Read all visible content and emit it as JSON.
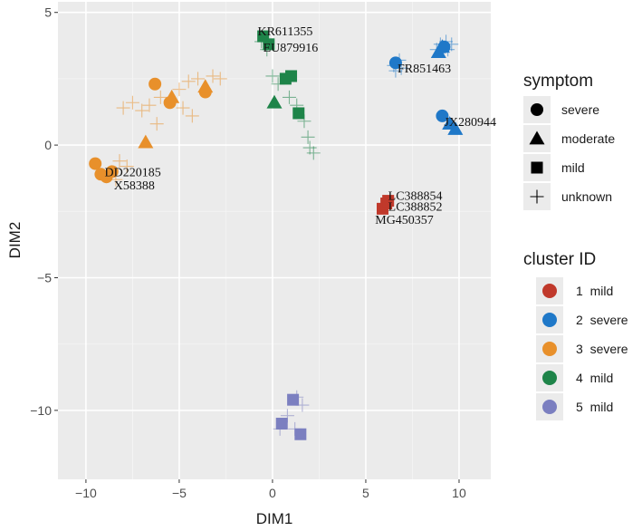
{
  "chart_data": {
    "type": "scatter",
    "xlabel": "DIM1",
    "ylabel": "DIM2",
    "xlim": [
      -11.5,
      11.7
    ],
    "ylim": [
      -12.6,
      5.4
    ],
    "x_ticks": [
      -10,
      -5,
      0,
      5,
      10
    ],
    "y_ticks": [
      5,
      0,
      -5,
      -10
    ],
    "x_tick_labels": [
      "−10",
      "−5",
      "0",
      "5",
      "10"
    ],
    "y_tick_labels": [
      "5",
      "0",
      "−5",
      "−10"
    ],
    "grid": true,
    "legend_position": "right",
    "colors": {
      "1": "#c0392b",
      "2": "#1f78c8",
      "3": "#e8902b",
      "4": "#1e8449",
      "5": "#7b7fc0"
    },
    "symptom_legend": {
      "title": "symptom",
      "items": [
        {
          "shape": "circle",
          "label": "severe"
        },
        {
          "shape": "triangle",
          "label": "moderate"
        },
        {
          "shape": "square",
          "label": "mild"
        },
        {
          "shape": "plus",
          "label": "unknown"
        }
      ]
    },
    "cluster_legend": {
      "title": "cluster ID",
      "items": [
        {
          "id": "1",
          "label": "1  mild"
        },
        {
          "id": "2",
          "label": "2  severe"
        },
        {
          "id": "3",
          "label": "3  severe"
        },
        {
          "id": "4",
          "label": "4  mild"
        },
        {
          "id": "5",
          "label": "5  mild"
        }
      ]
    },
    "points": [
      {
        "x": 5.9,
        "y": -2.4,
        "cluster": "1",
        "symptom": "mild"
      },
      {
        "x": 6.1,
        "y": -2.2,
        "cluster": "1",
        "symptom": "mild"
      },
      {
        "x": 6.2,
        "y": -2.1,
        "cluster": "1",
        "symptom": "mild"
      },
      {
        "x": 6.6,
        "y": 3.1,
        "cluster": "2",
        "symptom": "severe"
      },
      {
        "x": 9.2,
        "y": 3.7,
        "cluster": "2",
        "symptom": "severe"
      },
      {
        "x": 9.1,
        "y": 1.1,
        "cluster": "2",
        "symptom": "severe"
      },
      {
        "x": 8.9,
        "y": 3.5,
        "cluster": "2",
        "symptom": "moderate"
      },
      {
        "x": 9.1,
        "y": 3.7,
        "cluster": "2",
        "symptom": "moderate"
      },
      {
        "x": 9.5,
        "y": 0.8,
        "cluster": "2",
        "symptom": "moderate"
      },
      {
        "x": 9.8,
        "y": 0.6,
        "cluster": "2",
        "symptom": "moderate"
      },
      {
        "x": 6.5,
        "y": 3.0,
        "cluster": "2",
        "symptom": "unknown"
      },
      {
        "x": 6.8,
        "y": 3.2,
        "cluster": "2",
        "symptom": "unknown"
      },
      {
        "x": 6.6,
        "y": 2.8,
        "cluster": "2",
        "symptom": "unknown"
      },
      {
        "x": 6.9,
        "y": 2.9,
        "cluster": "2",
        "symptom": "unknown"
      },
      {
        "x": 8.8,
        "y": 3.6,
        "cluster": "2",
        "symptom": "unknown"
      },
      {
        "x": 9.3,
        "y": 3.9,
        "cluster": "2",
        "symptom": "unknown"
      },
      {
        "x": 9.4,
        "y": 3.6,
        "cluster": "2",
        "symptom": "unknown"
      },
      {
        "x": 9.0,
        "y": 3.8,
        "cluster": "2",
        "symptom": "unknown"
      },
      {
        "x": 9.6,
        "y": 3.8,
        "cluster": "2",
        "symptom": "unknown"
      },
      {
        "x": -6.3,
        "y": 2.3,
        "cluster": "3",
        "symptom": "severe"
      },
      {
        "x": -5.5,
        "y": 1.6,
        "cluster": "3",
        "symptom": "severe"
      },
      {
        "x": -3.6,
        "y": 2.0,
        "cluster": "3",
        "symptom": "severe"
      },
      {
        "x": -9.5,
        "y": -0.7,
        "cluster": "3",
        "symptom": "severe"
      },
      {
        "x": -9.2,
        "y": -1.1,
        "cluster": "3",
        "symptom": "severe"
      },
      {
        "x": -8.9,
        "y": -1.2,
        "cluster": "3",
        "symptom": "severe"
      },
      {
        "x": -8.6,
        "y": -1.0,
        "cluster": "3",
        "symptom": "severe"
      },
      {
        "x": -6.8,
        "y": 0.1,
        "cluster": "3",
        "symptom": "moderate"
      },
      {
        "x": -5.4,
        "y": 1.8,
        "cluster": "3",
        "symptom": "moderate"
      },
      {
        "x": -3.6,
        "y": 2.2,
        "cluster": "3",
        "symptom": "moderate"
      },
      {
        "x": -8.0,
        "y": 1.4,
        "cluster": "3",
        "symptom": "unknown"
      },
      {
        "x": -7.5,
        "y": 1.6,
        "cluster": "3",
        "symptom": "unknown"
      },
      {
        "x": -7.0,
        "y": 1.3,
        "cluster": "3",
        "symptom": "unknown"
      },
      {
        "x": -6.6,
        "y": 1.5,
        "cluster": "3",
        "symptom": "unknown"
      },
      {
        "x": -6.0,
        "y": 1.8,
        "cluster": "3",
        "symptom": "unknown"
      },
      {
        "x": -5.0,
        "y": 2.1,
        "cluster": "3",
        "symptom": "unknown"
      },
      {
        "x": -4.5,
        "y": 2.4,
        "cluster": "3",
        "symptom": "unknown"
      },
      {
        "x": -4.0,
        "y": 2.5,
        "cluster": "3",
        "symptom": "unknown"
      },
      {
        "x": -3.2,
        "y": 2.6,
        "cluster": "3",
        "symptom": "unknown"
      },
      {
        "x": -2.8,
        "y": 2.5,
        "cluster": "3",
        "symptom": "unknown"
      },
      {
        "x": -4.8,
        "y": 1.4,
        "cluster": "3",
        "symptom": "unknown"
      },
      {
        "x": -4.3,
        "y": 1.1,
        "cluster": "3",
        "symptom": "unknown"
      },
      {
        "x": -6.2,
        "y": 0.8,
        "cluster": "3",
        "symptom": "unknown"
      },
      {
        "x": -8.2,
        "y": -0.6,
        "cluster": "3",
        "symptom": "unknown"
      },
      {
        "x": -7.8,
        "y": -0.8,
        "cluster": "3",
        "symptom": "unknown"
      },
      {
        "x": -8.4,
        "y": -1.3,
        "cluster": "3",
        "symptom": "unknown"
      },
      {
        "x": -0.5,
        "y": 4.1,
        "cluster": "4",
        "symptom": "mild"
      },
      {
        "x": -0.2,
        "y": 3.8,
        "cluster": "4",
        "symptom": "mild"
      },
      {
        "x": 0.7,
        "y": 2.5,
        "cluster": "4",
        "symptom": "mild"
      },
      {
        "x": 1.0,
        "y": 2.6,
        "cluster": "4",
        "symptom": "mild"
      },
      {
        "x": 1.4,
        "y": 1.2,
        "cluster": "4",
        "symptom": "mild"
      },
      {
        "x": 0.1,
        "y": 1.6,
        "cluster": "4",
        "symptom": "moderate"
      },
      {
        "x": -0.3,
        "y": 3.6,
        "cluster": "4",
        "symptom": "unknown"
      },
      {
        "x": -0.6,
        "y": 3.9,
        "cluster": "4",
        "symptom": "unknown"
      },
      {
        "x": 0.0,
        "y": 2.6,
        "cluster": "4",
        "symptom": "unknown"
      },
      {
        "x": 0.3,
        "y": 2.3,
        "cluster": "4",
        "symptom": "unknown"
      },
      {
        "x": 0.9,
        "y": 1.8,
        "cluster": "4",
        "symptom": "unknown"
      },
      {
        "x": 1.3,
        "y": 1.5,
        "cluster": "4",
        "symptom": "unknown"
      },
      {
        "x": 1.7,
        "y": 0.9,
        "cluster": "4",
        "symptom": "unknown"
      },
      {
        "x": 1.9,
        "y": 0.3,
        "cluster": "4",
        "symptom": "unknown"
      },
      {
        "x": 2.0,
        "y": -0.1,
        "cluster": "4",
        "symptom": "unknown"
      },
      {
        "x": 2.2,
        "y": -0.3,
        "cluster": "4",
        "symptom": "unknown"
      },
      {
        "x": 0.5,
        "y": -10.5,
        "cluster": "5",
        "symptom": "mild"
      },
      {
        "x": 1.1,
        "y": -9.6,
        "cluster": "5",
        "symptom": "mild"
      },
      {
        "x": 1.5,
        "y": -10.9,
        "cluster": "5",
        "symptom": "mild"
      },
      {
        "x": 0.4,
        "y": -10.7,
        "cluster": "5",
        "symptom": "unknown"
      },
      {
        "x": 0.8,
        "y": -10.2,
        "cluster": "5",
        "symptom": "unknown"
      },
      {
        "x": 1.3,
        "y": -9.5,
        "cluster": "5",
        "symptom": "unknown"
      },
      {
        "x": 1.6,
        "y": -9.8,
        "cluster": "5",
        "symptom": "unknown"
      },
      {
        "x": 1.2,
        "y": -10.7,
        "cluster": "5",
        "symptom": "unknown"
      }
    ],
    "annotations": [
      {
        "text": "KR611355",
        "x": -0.8,
        "y": 4.3
      },
      {
        "text": "EU879916",
        "x": -0.5,
        "y": 3.7
      },
      {
        "text": "FR851463",
        "x": 6.7,
        "y": 2.9
      },
      {
        "text": "JX280944",
        "x": 9.2,
        "y": 0.9
      },
      {
        "text": "DD220185",
        "x": -9.0,
        "y": -1.0
      },
      {
        "text": "X58388",
        "x": -8.5,
        "y": -1.5
      },
      {
        "text": "LC388854",
        "x": 6.2,
        "y": -1.9
      },
      {
        "text": "LC388852",
        "x": 6.2,
        "y": -2.3
      },
      {
        "text": "MG450357",
        "x": 5.5,
        "y": -2.8
      }
    ]
  }
}
